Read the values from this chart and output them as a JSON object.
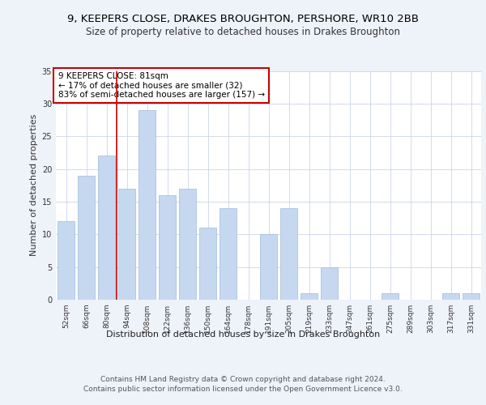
{
  "title1": "9, KEEPERS CLOSE, DRAKES BROUGHTON, PERSHORE, WR10 2BB",
  "title2": "Size of property relative to detached houses in Drakes Broughton",
  "xlabel": "Distribution of detached houses by size in Drakes Broughton",
  "ylabel": "Number of detached properties",
  "categories": [
    "52sqm",
    "66sqm",
    "80sqm",
    "94sqm",
    "108sqm",
    "122sqm",
    "136sqm",
    "150sqm",
    "164sqm",
    "178sqm",
    "191sqm",
    "205sqm",
    "219sqm",
    "233sqm",
    "247sqm",
    "261sqm",
    "275sqm",
    "289sqm",
    "303sqm",
    "317sqm",
    "331sqm"
  ],
  "values": [
    12,
    19,
    22,
    17,
    29,
    16,
    17,
    11,
    14,
    0,
    10,
    14,
    1,
    5,
    0,
    0,
    1,
    0,
    0,
    1,
    1
  ],
  "bar_color": "#c5d8f0",
  "bar_edgecolor": "#a0bbd8",
  "vline_color": "#cc0000",
  "vline_pos": 2.5,
  "annotation_text": "9 KEEPERS CLOSE: 81sqm\n← 17% of detached houses are smaller (32)\n83% of semi-detached houses are larger (157) →",
  "annotation_box_edgecolor": "#cc0000",
  "ylim": [
    0,
    35
  ],
  "yticks": [
    0,
    5,
    10,
    15,
    20,
    25,
    30,
    35
  ],
  "footer1": "Contains HM Land Registry data © Crown copyright and database right 2024.",
  "footer2": "Contains public sector information licensed under the Open Government Licence v3.0.",
  "bg_color": "#eef2f9",
  "plot_bg_color": "#ffffff",
  "title_fontsize": 9.5,
  "subtitle_fontsize": 8.5,
  "tick_fontsize": 6.5,
  "ylabel_fontsize": 8,
  "xlabel_fontsize": 8,
  "footer_fontsize": 6.5,
  "ann_fontsize": 7.5
}
